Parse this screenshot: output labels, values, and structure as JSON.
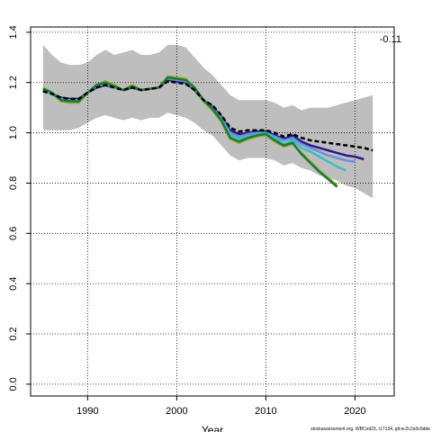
{
  "chart_data": {
    "type": "line",
    "annotation": "-0.11",
    "x_label": "Year",
    "footer": "stockassessment.org, WBCod23, r17134, git:ec2c2a0c6dde",
    "x": [
      1985,
      1986,
      1987,
      1988,
      1989,
      1990,
      1991,
      1992,
      1993,
      1994,
      1995,
      1996,
      1997,
      1998,
      1999,
      2000,
      2001,
      2002,
      2003,
      2004,
      2005,
      2006,
      2007,
      2008,
      2009,
      2010,
      2011,
      2012,
      2013,
      2014,
      2015,
      2016,
      2017,
      2018,
      2019,
      2020,
      2021,
      2022
    ],
    "band": {
      "color": "#bebebe",
      "upper": [
        1.35,
        1.31,
        1.28,
        1.27,
        1.27,
        1.28,
        1.31,
        1.33,
        1.31,
        1.32,
        1.33,
        1.31,
        1.31,
        1.32,
        1.35,
        1.35,
        1.34,
        1.3,
        1.26,
        1.23,
        1.19,
        1.15,
        1.13,
        1.13,
        1.13,
        1.13,
        1.12,
        1.1,
        1.11,
        1.09,
        1.1,
        1.1,
        1.1,
        1.11,
        1.12,
        1.13,
        1.14,
        1.15
      ],
      "lower": [
        1.01,
        1.01,
        1.01,
        1.01,
        1.02,
        1.04,
        1.06,
        1.07,
        1.06,
        1.05,
        1.06,
        1.05,
        1.06,
        1.06,
        1.08,
        1.07,
        1.06,
        1.04,
        1.01,
        0.99,
        0.95,
        0.91,
        0.89,
        0.9,
        0.9,
        0.9,
        0.89,
        0.87,
        0.88,
        0.86,
        0.85,
        0.83,
        0.82,
        0.81,
        0.79,
        0.78,
        0.76,
        0.74
      ]
    },
    "series": [
      {
        "color": "#2a1a8a",
        "values": [
          1.17,
          1.155,
          1.14,
          1.135,
          1.135,
          1.16,
          1.18,
          1.19,
          1.18,
          1.17,
          1.18,
          1.17,
          1.175,
          1.18,
          1.21,
          1.205,
          1.2,
          1.17,
          1.13,
          1.105,
          1.065,
          1.01,
          0.995,
          1.0,
          1.005,
          1.005,
          0.99,
          0.975,
          0.99,
          0.965,
          0.95,
          0.94,
          0.93,
          0.92,
          0.91,
          0.905,
          0.895,
          null
        ]
      },
      {
        "color": "#6b8ee0",
        "values": [
          1.17,
          1.155,
          1.135,
          1.13,
          1.13,
          1.16,
          1.185,
          1.195,
          1.18,
          1.17,
          1.185,
          1.17,
          1.175,
          1.18,
          1.215,
          1.21,
          1.205,
          1.175,
          1.13,
          1.1,
          1.06,
          1.0,
          0.985,
          0.995,
          1.0,
          1.0,
          0.985,
          0.97,
          0.98,
          0.955,
          0.94,
          0.925,
          0.91,
          0.9,
          0.89,
          0.885,
          null,
          null
        ]
      },
      {
        "color": "#3bbfbf",
        "values": [
          1.175,
          1.155,
          1.13,
          1.125,
          1.125,
          1.16,
          1.19,
          1.2,
          1.185,
          1.17,
          1.19,
          1.17,
          1.175,
          1.18,
          1.22,
          1.215,
          1.21,
          1.18,
          1.13,
          1.095,
          1.055,
          0.99,
          0.975,
          0.985,
          0.995,
          1.0,
          0.98,
          0.955,
          0.97,
          0.94,
          0.925,
          0.905,
          0.885,
          0.865,
          0.85,
          null,
          null,
          null
        ]
      },
      {
        "color": "#9aaa2a",
        "values": [
          1.18,
          1.16,
          1.125,
          1.12,
          1.12,
          1.16,
          1.19,
          1.205,
          1.19,
          1.17,
          1.19,
          1.17,
          1.175,
          1.18,
          1.225,
          1.22,
          1.215,
          1.18,
          1.125,
          1.09,
          1.045,
          0.975,
          0.96,
          0.975,
          0.985,
          0.99,
          0.965,
          0.945,
          0.955,
          0.92,
          0.885,
          0.85,
          0.82,
          0.79,
          null,
          null,
          null,
          null
        ]
      },
      {
        "color": "#1a7a3a",
        "values": [
          1.175,
          1.16,
          1.13,
          1.125,
          1.125,
          1.16,
          1.19,
          1.2,
          1.185,
          1.17,
          1.185,
          1.17,
          1.175,
          1.18,
          1.22,
          1.215,
          1.21,
          1.18,
          1.13,
          1.095,
          1.05,
          0.98,
          0.965,
          0.98,
          0.99,
          0.995,
          0.97,
          0.95,
          0.96,
          0.915,
          0.88,
          0.845,
          0.815,
          0.785,
          null,
          null,
          null,
          null
        ]
      },
      {
        "color": "#000000",
        "dashed": true,
        "values": [
          1.165,
          1.155,
          1.14,
          1.135,
          1.135,
          1.16,
          1.18,
          1.19,
          1.18,
          1.17,
          1.18,
          1.17,
          1.175,
          1.18,
          1.205,
          1.2,
          1.195,
          1.17,
          1.13,
          1.11,
          1.07,
          1.02,
          1.005,
          1.01,
          1.01,
          1.01,
          1.0,
          0.985,
          0.995,
          0.98,
          0.97,
          0.965,
          0.96,
          0.955,
          0.95,
          0.945,
          0.94,
          0.93
        ]
      }
    ],
    "xlim": [
      1983.6,
      2024.4
    ],
    "xticks": [
      1990,
      2000,
      2010,
      2020
    ],
    "ylim": [
      -0.047,
      1.421
    ],
    "yticks": [
      {
        "value": 0,
        "label": "0.0"
      },
      0.2,
      0.4,
      0.6,
      0.8,
      {
        "value": 1,
        "label": "1.0"
      },
      1.2,
      1.4
    ],
    "grid": true
  }
}
